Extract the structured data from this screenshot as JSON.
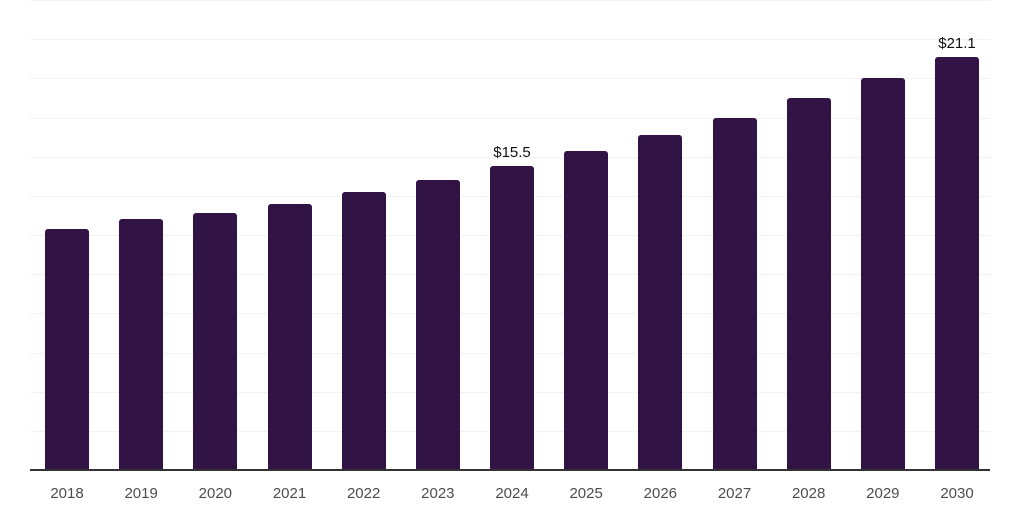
{
  "chart_data": {
    "type": "bar",
    "categories": [
      "2018",
      "2019",
      "2020",
      "2021",
      "2022",
      "2023",
      "2024",
      "2025",
      "2026",
      "2027",
      "2028",
      "2029",
      "2030"
    ],
    "values": [
      12.3,
      12.8,
      13.1,
      13.6,
      14.2,
      14.8,
      15.5,
      16.3,
      17.1,
      18.0,
      19.0,
      20.0,
      21.1
    ],
    "data_labels": [
      "",
      "",
      "",
      "",
      "",
      "",
      "$15.5",
      "",
      "",
      "",
      "",
      "",
      "$21.1"
    ],
    "title": "",
    "xlabel": "",
    "ylabel": "",
    "ylim": [
      0,
      24
    ],
    "grid_step": 2,
    "grid_on": true,
    "legend_position": "none",
    "colors": {
      "bar": "#321345",
      "gridline": "#f2f2f2",
      "axis_line": "#333333",
      "tick_label": "#4d4d4d",
      "data_label": "#111111",
      "background": "#ffffff"
    }
  }
}
